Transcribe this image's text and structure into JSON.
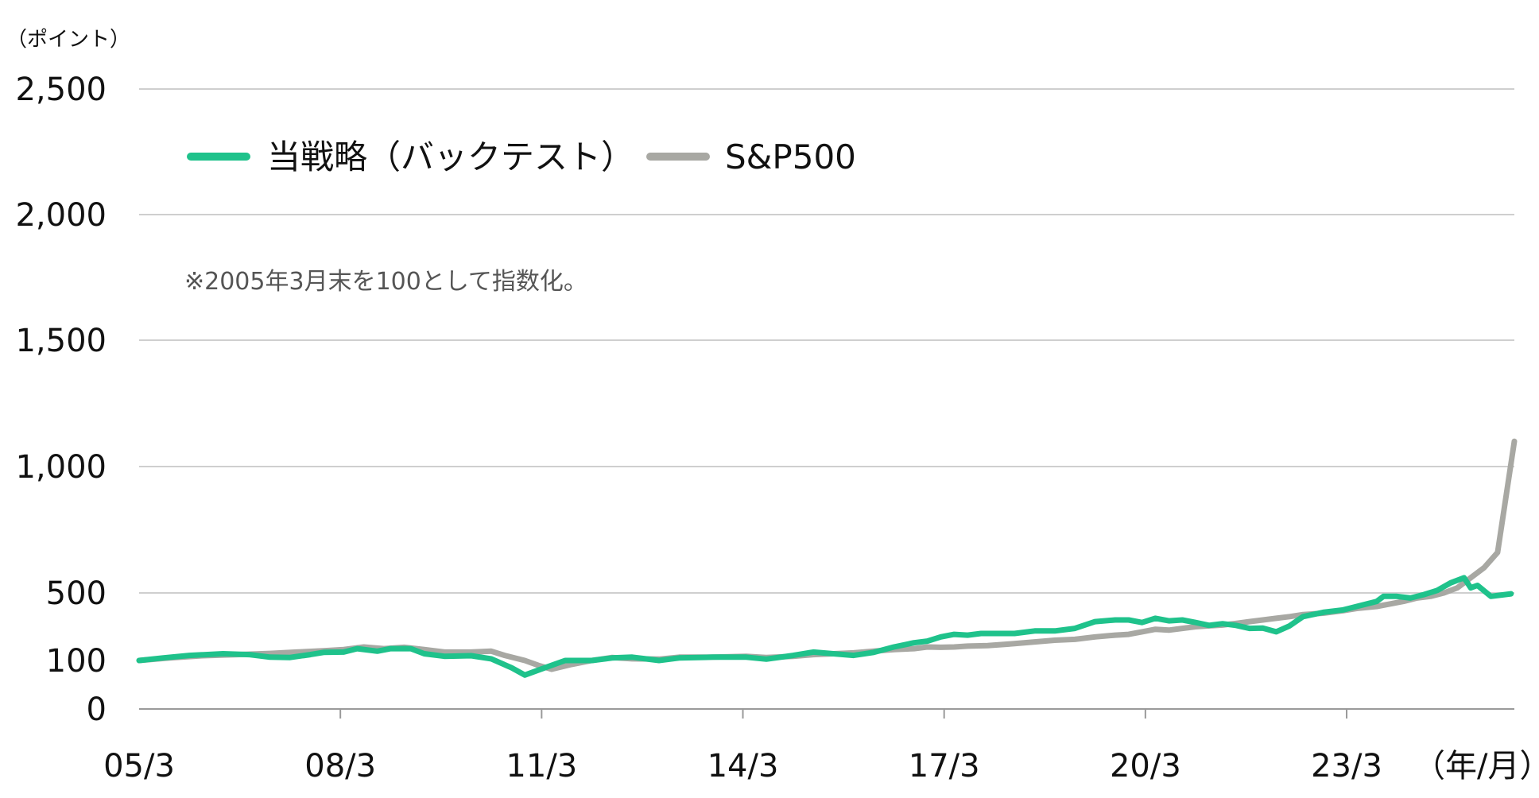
{
  "chart_data": {
    "type": "line",
    "y_unit_label": "（ポイント）",
    "x_unit_label": "（年/月）",
    "note": "※2005年3月末を100として指数化。",
    "y_ticks": [
      {
        "value": 0,
        "label": "0"
      },
      {
        "value": 100,
        "label": "100"
      },
      {
        "value": 500,
        "label": "500"
      },
      {
        "value": 1000,
        "label": "1,000"
      },
      {
        "value": 1500,
        "label": "1,500"
      },
      {
        "value": 2000,
        "label": "2,000"
      },
      {
        "value": 2500,
        "label": "2,500"
      }
    ],
    "x_ticks": [
      {
        "value": 2005.25,
        "label": "05/3"
      },
      {
        "value": 2008.25,
        "label": "08/3"
      },
      {
        "value": 2011.25,
        "label": "11/3"
      },
      {
        "value": 2014.25,
        "label": "14/3"
      },
      {
        "value": 2017.25,
        "label": "17/3"
      },
      {
        "value": 2020.25,
        "label": "20/3"
      },
      {
        "value": 2023.25,
        "label": "23/3"
      }
    ],
    "xlim": [
      2005.25,
      2025.75
    ],
    "grid": true,
    "legend": "top-left",
    "series": [
      {
        "name": "当戦略（バックテスト）",
        "color": "#1fc28b",
        "points": [
          [
            2005.25,
            100
          ],
          [
            2005.6,
            115
          ],
          [
            2006.0,
            130
          ],
          [
            2006.5,
            140
          ],
          [
            2006.9,
            135
          ],
          [
            2007.2,
            120
          ],
          [
            2007.5,
            118
          ],
          [
            2007.8,
            135
          ],
          [
            2008.0,
            148
          ],
          [
            2008.3,
            150
          ],
          [
            2008.5,
            170
          ],
          [
            2008.8,
            155
          ],
          [
            2009.0,
            170
          ],
          [
            2009.3,
            170
          ],
          [
            2009.5,
            140
          ],
          [
            2009.8,
            125
          ],
          [
            2010.2,
            128
          ],
          [
            2010.5,
            110
          ],
          [
            2010.8,
            85
          ],
          [
            2011.0,
            70
          ],
          [
            2011.3,
            85
          ],
          [
            2011.6,
            100
          ],
          [
            2012.0,
            100
          ],
          [
            2012.3,
            115
          ],
          [
            2012.6,
            120
          ],
          [
            2012.8,
            110
          ],
          [
            2013.0,
            100
          ],
          [
            2013.3,
            115
          ],
          [
            2013.8,
            120
          ],
          [
            2014.3,
            120
          ],
          [
            2014.6,
            108
          ],
          [
            2015.0,
            130
          ],
          [
            2015.3,
            150
          ],
          [
            2015.6,
            140
          ],
          [
            2015.9,
            130
          ],
          [
            2016.2,
            148
          ],
          [
            2016.5,
            180
          ],
          [
            2016.8,
            205
          ],
          [
            2017.0,
            215
          ],
          [
            2017.2,
            240
          ],
          [
            2017.4,
            255
          ],
          [
            2017.6,
            250
          ],
          [
            2017.8,
            260
          ],
          [
            2018.3,
            260
          ],
          [
            2018.6,
            275
          ],
          [
            2018.9,
            275
          ],
          [
            2019.2,
            290
          ],
          [
            2019.5,
            330
          ],
          [
            2019.8,
            340
          ],
          [
            2019.9,
            340
          ],
          [
            2020.0,
            340
          ],
          [
            2020.2,
            325
          ],
          [
            2020.4,
            350
          ],
          [
            2020.6,
            335
          ],
          [
            2020.8,
            340
          ],
          [
            2021.0,
            325
          ],
          [
            2021.2,
            308
          ],
          [
            2021.4,
            318
          ],
          [
            2021.6,
            308
          ],
          [
            2021.8,
            290
          ],
          [
            2022.0,
            292
          ],
          [
            2022.2,
            270
          ],
          [
            2022.4,
            305
          ],
          [
            2022.6,
            360
          ],
          [
            2022.9,
            385
          ],
          [
            2023.2,
            400
          ],
          [
            2023.4,
            420
          ],
          [
            2023.7,
            450
          ],
          [
            2023.8,
            480
          ],
          [
            2024.0,
            480
          ],
          [
            2024.2,
            470
          ],
          [
            2024.4,
            490
          ],
          [
            2024.6,
            510
          ],
          [
            2024.8,
            540
          ],
          [
            2025.0,
            560
          ],
          [
            2025.1,
            520
          ],
          [
            2025.2,
            530
          ],
          [
            2025.4,
            480
          ],
          [
            2025.7,
            495
          ]
        ]
      },
      {
        "name": "S&P500",
        "color": "#a8a8a3",
        "points": [
          [
            2005.25,
            100
          ],
          [
            2005.7,
            115
          ],
          [
            2006.2,
            128
          ],
          [
            2006.7,
            135
          ],
          [
            2007.2,
            142
          ],
          [
            2007.6,
            150
          ],
          [
            2008.0,
            158
          ],
          [
            2008.3,
            165
          ],
          [
            2008.6,
            180
          ],
          [
            2008.9,
            170
          ],
          [
            2009.2,
            178
          ],
          [
            2009.5,
            165
          ],
          [
            2009.8,
            150
          ],
          [
            2010.2,
            150
          ],
          [
            2010.5,
            155
          ],
          [
            2010.7,
            130
          ],
          [
            2011.0,
            100
          ],
          [
            2011.2,
            90
          ],
          [
            2011.4,
            82
          ],
          [
            2011.7,
            92
          ],
          [
            2012.0,
            100
          ],
          [
            2012.3,
            118
          ],
          [
            2012.6,
            110
          ],
          [
            2013.0,
            108
          ],
          [
            2013.3,
            120
          ],
          [
            2013.8,
            120
          ],
          [
            2014.3,
            125
          ],
          [
            2014.6,
            118
          ],
          [
            2015.0,
            125
          ],
          [
            2015.3,
            135
          ],
          [
            2015.6,
            140
          ],
          [
            2015.9,
            145
          ],
          [
            2016.2,
            155
          ],
          [
            2016.5,
            165
          ],
          [
            2016.8,
            170
          ],
          [
            2017.0,
            180
          ],
          [
            2017.2,
            178
          ],
          [
            2017.4,
            180
          ],
          [
            2017.6,
            185
          ],
          [
            2017.9,
            188
          ],
          [
            2018.3,
            200
          ],
          [
            2018.6,
            210
          ],
          [
            2018.9,
            220
          ],
          [
            2019.2,
            225
          ],
          [
            2019.5,
            240
          ],
          [
            2019.8,
            250
          ],
          [
            2020.0,
            255
          ],
          [
            2020.2,
            270
          ],
          [
            2020.4,
            285
          ],
          [
            2020.6,
            280
          ],
          [
            2020.8,
            290
          ],
          [
            2021.0,
            300
          ],
          [
            2021.2,
            305
          ],
          [
            2021.4,
            310
          ],
          [
            2021.6,
            320
          ],
          [
            2021.8,
            330
          ],
          [
            2022.0,
            340
          ],
          [
            2022.2,
            350
          ],
          [
            2022.4,
            360
          ],
          [
            2022.6,
            372
          ],
          [
            2022.9,
            380
          ],
          [
            2023.2,
            395
          ],
          [
            2023.4,
            408
          ],
          [
            2023.7,
            420
          ],
          [
            2023.9,
            435
          ],
          [
            2024.1,
            450
          ],
          [
            2024.3,
            470
          ],
          [
            2024.5,
            480
          ],
          [
            2024.7,
            500
          ],
          [
            2024.9,
            520
          ],
          [
            2025.1,
            560
          ],
          [
            2025.3,
            600
          ],
          [
            2025.5,
            660
          ],
          [
            2025.75,
            1100
          ]
        ]
      }
    ]
  }
}
